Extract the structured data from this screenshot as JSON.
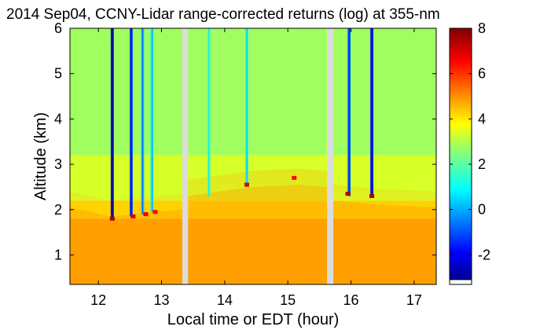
{
  "chart_data": {
    "type": "heatmap",
    "title": "2014 Sep04, CCNY-Lidar range-corrected returns (log) at 355-nm",
    "xlabel": "Local time or EDT (hour)",
    "ylabel": "Altitude (km)",
    "xlim": [
      11.55,
      17.35
    ],
    "ylim": [
      0.35,
      6.0
    ],
    "x_ticks": [
      {
        "value": 12,
        "label": "12"
      },
      {
        "value": 13,
        "label": "13"
      },
      {
        "value": 14,
        "label": "14"
      },
      {
        "value": 15,
        "label": "15"
      },
      {
        "value": 16,
        "label": "16"
      },
      {
        "value": 17,
        "label": "17"
      }
    ],
    "y_ticks": [
      {
        "value": 1,
        "label": "1"
      },
      {
        "value": 2,
        "label": "2"
      },
      {
        "value": 3,
        "label": "3"
      },
      {
        "value": 4,
        "label": "4"
      },
      {
        "value": 5,
        "label": "5"
      },
      {
        "value": 6,
        "label": "6"
      }
    ],
    "colorbar": {
      "range": [
        -3.1,
        8.0
      ],
      "colormap": "jet",
      "ticks": [
        {
          "value": -2,
          "label": "-2"
        },
        {
          "value": 0,
          "label": "0"
        },
        {
          "value": 2,
          "label": "2"
        },
        {
          "value": 4,
          "label": "4"
        },
        {
          "value": 6,
          "label": "6"
        },
        {
          "value": 8,
          "label": "8"
        }
      ]
    },
    "data_gaps": [
      {
        "start": 13.33,
        "end": 13.42
      },
      {
        "start": 15.62,
        "end": 15.72
      }
    ],
    "layers": [
      {
        "alt_min": 0.35,
        "alt_max": 1.8,
        "value": 5.0
      },
      {
        "alt_min": 1.8,
        "alt_max": 2.2,
        "value": 4.3
      },
      {
        "alt_min": 2.2,
        "alt_max": 3.2,
        "value": 3.4
      },
      {
        "alt_min": 3.2,
        "alt_max": 6.0,
        "value": 2.8
      }
    ],
    "boundary_layer_top": [
      {
        "x": 11.55,
        "y": 2.05
      },
      {
        "x": 12.2,
        "y": 1.85
      },
      {
        "x": 12.9,
        "y": 1.95
      },
      {
        "x": 13.33,
        "y": 2.0
      },
      {
        "x": 13.42,
        "y": 2.3
      },
      {
        "x": 14.4,
        "y": 2.5
      },
      {
        "x": 15.2,
        "y": 2.55
      },
      {
        "x": 15.62,
        "y": 2.5
      },
      {
        "x": 15.72,
        "y": 2.2
      },
      {
        "x": 16.5,
        "y": 2.1
      },
      {
        "x": 17.35,
        "y": 2.05
      }
    ],
    "cloud_features": [
      {
        "x": 12.22,
        "alt_min": 1.8,
        "alt_max": 6.0,
        "value": -2.0
      },
      {
        "x": 12.52,
        "alt_min": 1.85,
        "alt_max": 6.0,
        "value": -1.0
      },
      {
        "x": 12.7,
        "alt_min": 1.9,
        "alt_max": 6.0,
        "value": 0.5
      },
      {
        "x": 12.85,
        "alt_min": 1.95,
        "alt_max": 6.0,
        "value": 1.2
      },
      {
        "x": 13.75,
        "alt_min": 2.3,
        "alt_max": 6.0,
        "value": 2.0
      },
      {
        "x": 14.35,
        "alt_min": 2.5,
        "alt_max": 6.0,
        "value": 1.5
      },
      {
        "x": 15.97,
        "alt_min": 2.3,
        "alt_max": 6.0,
        "value": -0.5
      },
      {
        "x": 16.33,
        "alt_min": 2.3,
        "alt_max": 6.0,
        "value": -1.5
      }
    ],
    "cloud_base_returns": [
      {
        "x": 12.22,
        "y": 1.8,
        "value": 7.5
      },
      {
        "x": 12.55,
        "y": 1.85,
        "value": 7.0
      },
      {
        "x": 12.75,
        "y": 1.9,
        "value": 6.8
      },
      {
        "x": 12.9,
        "y": 1.95,
        "value": 6.5
      },
      {
        "x": 14.35,
        "y": 2.55,
        "value": 7.0
      },
      {
        "x": 15.1,
        "y": 2.7,
        "value": 6.5
      },
      {
        "x": 15.95,
        "y": 2.35,
        "value": 7.5
      },
      {
        "x": 16.33,
        "y": 2.3,
        "value": 7.5
      }
    ]
  }
}
